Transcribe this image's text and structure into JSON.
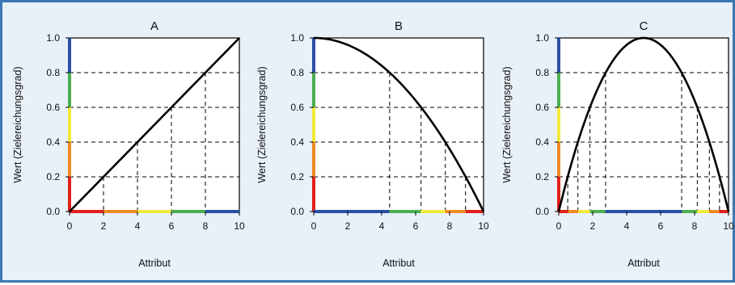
{
  "chart_data": [
    {
      "type": "line",
      "title": "A",
      "xlabel": "Attribut",
      "ylabel": "Wert (Zielereichungsgrad)",
      "xlim": [
        0,
        10
      ],
      "ylim": [
        0,
        1
      ],
      "x_ticks": [
        "0",
        "2",
        "4",
        "6",
        "8",
        "10"
      ],
      "y_ticks": [
        "0.0",
        "0.2",
        "0.4",
        "0.6",
        "0.8",
        "1.0"
      ],
      "grid": "dashed horizontal at 0.2 steps",
      "series": [
        {
          "function": "linear increasing",
          "x": [
            0,
            2,
            4,
            6,
            8,
            10
          ],
          "y": [
            0,
            0.2,
            0.4,
            0.6,
            0.8,
            1.0
          ]
        }
      ],
      "drop_lines": [
        {
          "x": 2,
          "y": 0.2
        },
        {
          "x": 4,
          "y": 0.4
        },
        {
          "x": 6,
          "y": 0.6
        },
        {
          "x": 8,
          "y": 0.8
        }
      ]
    },
    {
      "type": "line",
      "title": "B",
      "xlabel": "Attribut",
      "ylabel": "Wert (Zielereichungsgrad)",
      "xlim": [
        0,
        10
      ],
      "ylim": [
        0,
        1
      ],
      "x_ticks": [
        "0",
        "2",
        "4",
        "6",
        "8",
        "10"
      ],
      "y_ticks": [
        "0.0",
        "0.2",
        "0.4",
        "0.6",
        "0.8",
        "1.0"
      ],
      "grid": "dashed horizontal at 0.2 steps",
      "series": [
        {
          "function": "concave decreasing",
          "x": [
            0,
            2,
            4,
            4.47,
            6,
            6.32,
            7.75,
            8,
            8.94,
            10
          ],
          "y": [
            1.0,
            0.96,
            0.84,
            0.8,
            0.64,
            0.6,
            0.4,
            0.36,
            0.2,
            0
          ]
        }
      ],
      "drop_lines": [
        {
          "x": 4.47,
          "y": 0.8
        },
        {
          "x": 6.32,
          "y": 0.6
        },
        {
          "x": 7.75,
          "y": 0.4
        },
        {
          "x": 8.94,
          "y": 0.2
        }
      ]
    },
    {
      "type": "line",
      "title": "C",
      "xlabel": "Attribut",
      "ylabel": "Wert (Zielereichungsgrad)",
      "xlim": [
        0,
        10
      ],
      "ylim": [
        0,
        1
      ],
      "x_ticks": [
        "0",
        "2",
        "4",
        "6",
        "8",
        "10"
      ],
      "y_ticks": [
        "0.0",
        "0.2",
        "0.4",
        "0.6",
        "0.8",
        "1.0"
      ],
      "grid": "dashed horizontal at 0.2 steps",
      "series": [
        {
          "function": "parabola peaking at x=5",
          "x": [
            0,
            0.53,
            1.13,
            1.84,
            2.76,
            5,
            7.24,
            8.16,
            8.87,
            9.47,
            10
          ],
          "y": [
            0,
            0.2,
            0.4,
            0.6,
            0.8,
            1.0,
            0.8,
            0.6,
            0.4,
            0.2,
            0
          ]
        }
      ],
      "drop_lines": [
        {
          "x": 0.53,
          "y": 0.2
        },
        {
          "x": 1.13,
          "y": 0.4
        },
        {
          "x": 1.84,
          "y": 0.6
        },
        {
          "x": 2.76,
          "y": 0.8
        },
        {
          "x": 7.24,
          "y": 0.8
        },
        {
          "x": 8.16,
          "y": 0.6
        },
        {
          "x": 8.87,
          "y": 0.4
        },
        {
          "x": 9.47,
          "y": 0.2
        }
      ]
    }
  ],
  "colors": {
    "frame_border": "#3b77b3",
    "frame_background": "#e8f0f8",
    "value_band_colors": [
      "#e0201b",
      "#f08a24",
      "#f2e93c",
      "#4caf50",
      "#2a4fa5"
    ]
  }
}
